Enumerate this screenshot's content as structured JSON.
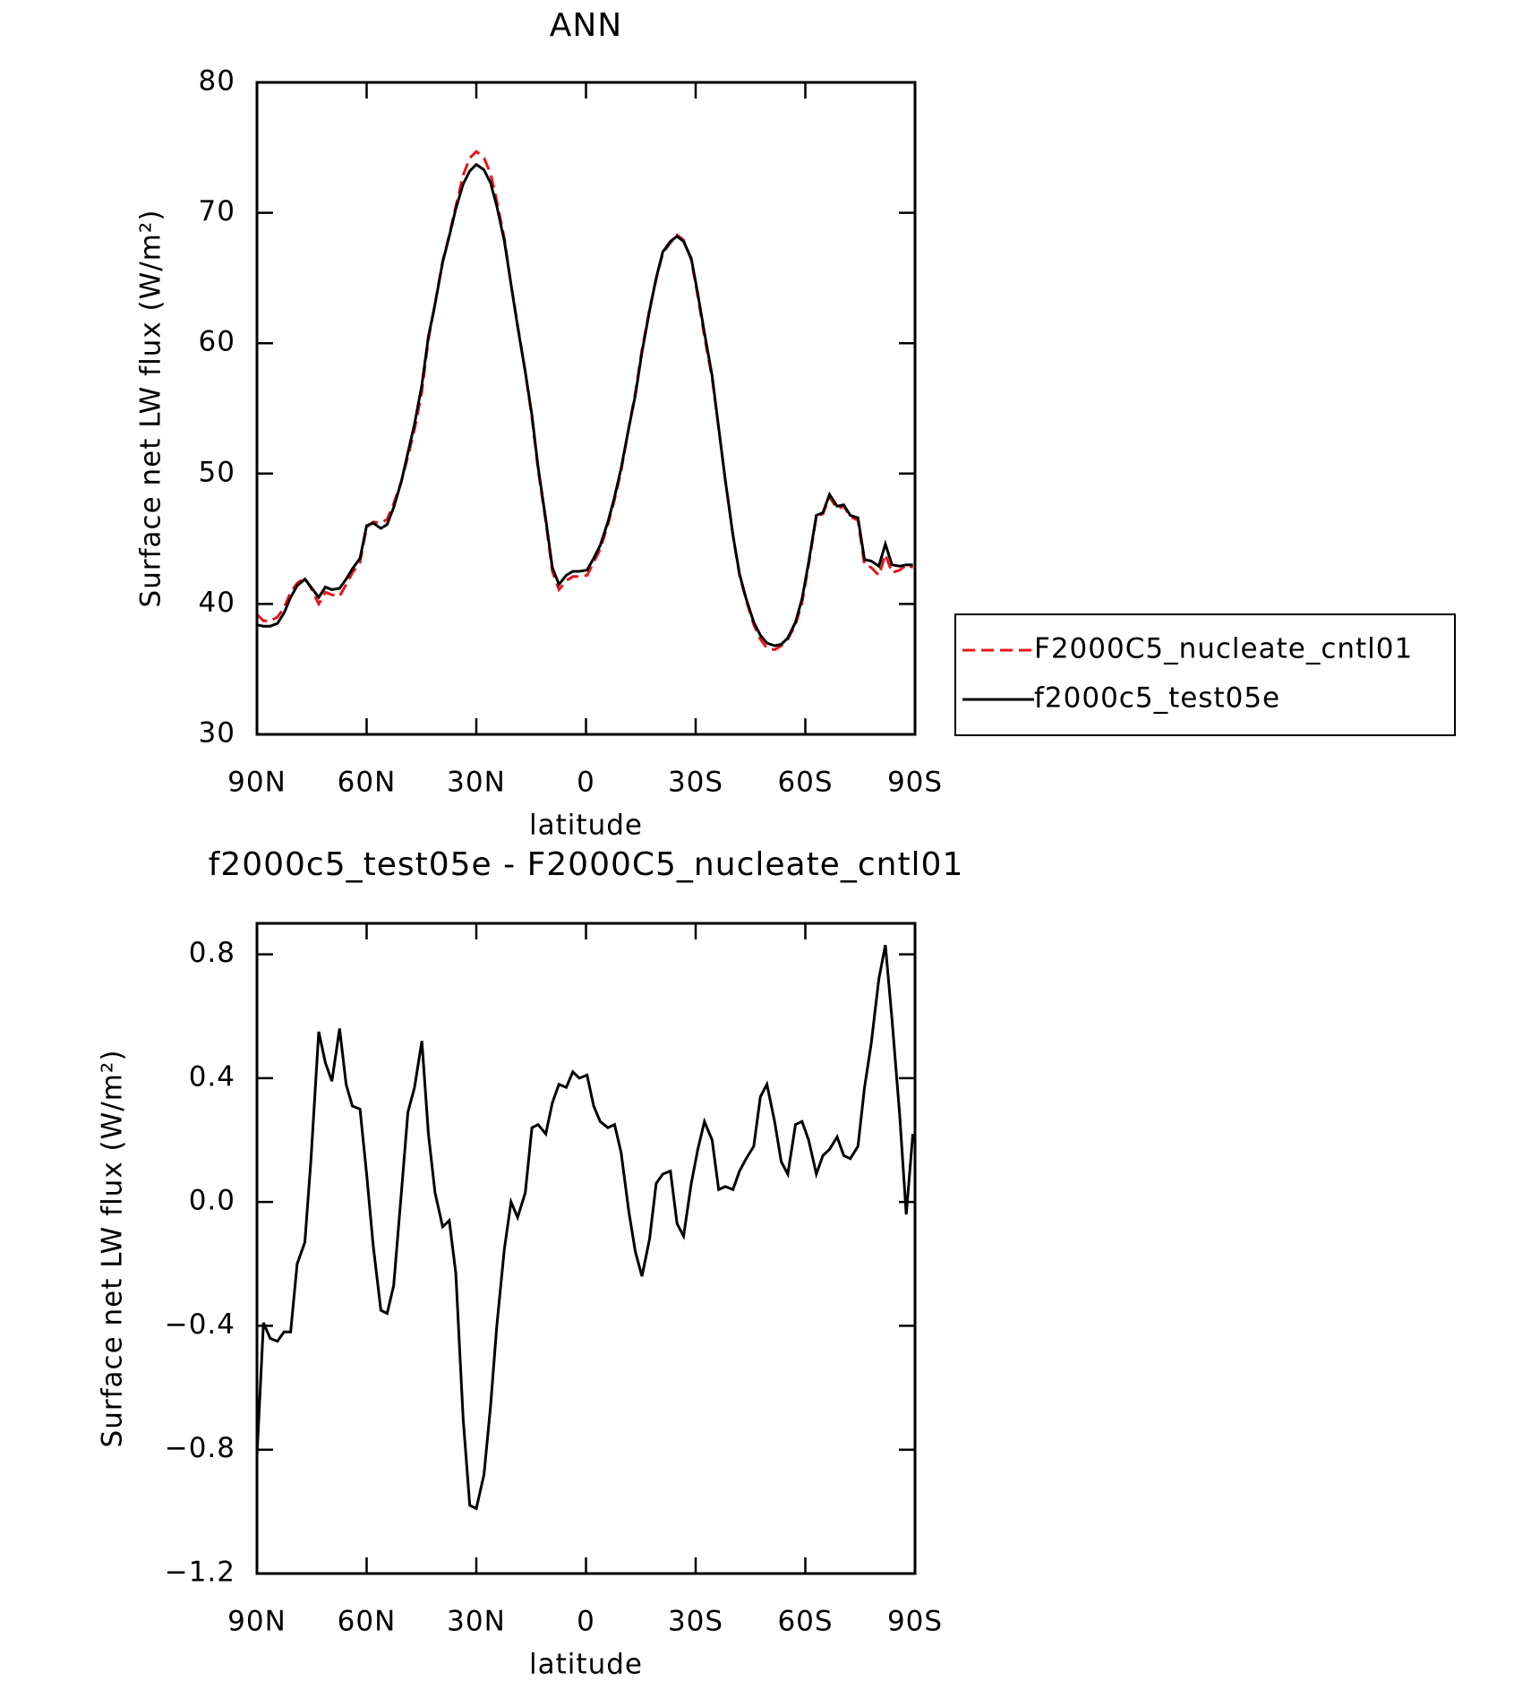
{
  "chart_data": [
    {
      "type": "line",
      "title": "ANN",
      "xlabel": "latitude",
      "ylabel": "Surface net LW flux (W/m²)",
      "x": [
        90,
        88.2,
        86.4,
        84.4,
        82.6,
        80.8,
        79.0,
        76.9,
        75.2,
        73.1,
        71.3,
        69.5,
        67.4,
        65.6,
        63.9,
        61.8,
        60.0,
        58.2,
        56.1,
        54.4,
        52.6,
        50.5,
        48.7,
        46.9,
        44.9,
        43.1,
        41.3,
        39.2,
        37.4,
        35.6,
        33.6,
        31.8,
        30.0,
        27.9,
        26.1,
        24.4,
        22.3,
        20.5,
        18.7,
        16.6,
        14.8,
        13.1,
        11.0,
        9.2,
        7.4,
        5.4,
        3.6,
        1.8,
        -0.3,
        -2.1,
        -3.9,
        -6.0,
        -7.8,
        -9.6,
        -11.7,
        -13.5,
        -15.3,
        -17.4,
        -19.2,
        -21.0,
        -23.1,
        -24.9,
        -26.7,
        -28.8,
        -30.6,
        -32.4,
        -34.5,
        -36.3,
        -38.1,
        -40.2,
        -42.0,
        -43.8,
        -45.9,
        -47.7,
        -49.5,
        -51.6,
        -53.4,
        -55.2,
        -57.3,
        -59.1,
        -60.9,
        -63.0,
        -64.8,
        -66.6,
        -68.7,
        -70.5,
        -72.3,
        -74.4,
        -76.2,
        -78.0,
        -80.1,
        -81.9,
        -83.7,
        -85.8,
        -87.6,
        -89.4
      ],
      "series": [
        {
          "name": "F2000C5_nucleate_cntl01",
          "color": "#e8141a",
          "style": "dashed",
          "values": [
            39.2,
            38.7,
            38.7,
            39.0,
            39.7,
            40.9,
            41.6,
            42.0,
            41.2,
            40.0,
            40.9,
            40.7,
            40.6,
            41.5,
            42.4,
            43.2,
            45.9,
            46.3,
            46.2,
            46.5,
            47.7,
            49.4,
            51.3,
            53.4,
            56.3,
            60.3,
            63.0,
            66.3,
            68.3,
            70.5,
            72.9,
            74.2,
            74.7,
            74.2,
            73.0,
            70.9,
            68.0,
            64.5,
            61.4,
            57.8,
            54.3,
            50.3,
            46.3,
            42.5,
            41.1,
            41.8,
            42.1,
            42.1,
            42.2,
            43.2,
            44.2,
            46.1,
            48.0,
            50.2,
            53.5,
            56.2,
            59.5,
            62.6,
            64.9,
            66.9,
            67.7,
            68.3,
            67.9,
            66.4,
            63.6,
            60.5,
            57.3,
            53.5,
            49.5,
            45.3,
            42.2,
            40.3,
            38.4,
            37.3,
            36.6,
            36.5,
            36.8,
            37.3,
            38.4,
            40.1,
            43.0,
            46.7,
            46.9,
            48.2,
            47.3,
            47.5,
            46.7,
            46.4,
            43.0,
            42.8,
            42.2,
            43.8,
            42.4,
            42.6,
            43.0,
            42.8
          ]
        },
        {
          "name": "f2000c5_test05e",
          "color": "#000000",
          "style": "solid",
          "values": [
            38.4,
            38.3,
            38.3,
            38.5,
            39.3,
            40.5,
            41.4,
            41.9,
            41.3,
            40.5,
            41.3,
            41.1,
            41.2,
            41.9,
            42.7,
            43.5,
            46.0,
            46.2,
            45.8,
            46.1,
            47.4,
            49.4,
            51.6,
            53.8,
            56.8,
            60.5,
            63.0,
            66.2,
            68.2,
            70.3,
            72.2,
            73.2,
            73.7,
            73.3,
            72.3,
            70.5,
            67.8,
            64.5,
            61.3,
            57.8,
            54.5,
            50.5,
            46.5,
            42.8,
            41.5,
            42.2,
            42.5,
            42.5,
            42.6,
            43.5,
            44.5,
            46.3,
            48.2,
            50.4,
            53.5,
            56.0,
            59.3,
            62.5,
            65.0,
            67.0,
            67.8,
            68.2,
            67.8,
            66.5,
            63.8,
            60.8,
            57.5,
            53.5,
            49.5,
            45.3,
            42.3,
            40.4,
            38.6,
            37.6,
            37.0,
            36.8,
            36.9,
            37.4,
            38.6,
            40.4,
            43.2,
            46.8,
            47.0,
            48.4,
            47.5,
            47.6,
            46.8,
            46.6,
            43.4,
            43.3,
            42.9,
            44.6,
            43.0,
            42.9,
            43.0,
            43.0
          ]
        }
      ],
      "xlim": [
        90,
        -90
      ],
      "xticks": [
        {
          "value": 90,
          "label": "90N"
        },
        {
          "value": 60,
          "label": "60N"
        },
        {
          "value": 30,
          "label": "30N"
        },
        0,
        {
          "value": -30,
          "label": "30S"
        },
        {
          "value": -60,
          "label": "60S"
        },
        {
          "value": -90,
          "label": "90S"
        }
      ],
      "ylim": [
        30,
        80
      ],
      "yticks": [
        30,
        40,
        50,
        60,
        70,
        80
      ],
      "legend": "right"
    },
    {
      "type": "line",
      "title": "f2000c5_test05e - F2000C5_nucleate_cntl01",
      "xlabel": "latitude",
      "ylabel": "Surface net LW flux (W/m²)",
      "x": [
        90,
        88.2,
        86.4,
        84.4,
        82.6,
        80.8,
        79.0,
        76.9,
        75.2,
        73.1,
        71.3,
        69.5,
        67.4,
        65.6,
        63.9,
        61.8,
        60.0,
        58.2,
        56.1,
        54.4,
        52.6,
        50.5,
        48.7,
        46.9,
        44.9,
        43.1,
        41.3,
        39.2,
        37.4,
        35.6,
        33.6,
        31.8,
        30.0,
        27.9,
        26.1,
        24.4,
        22.3,
        20.5,
        18.7,
        16.6,
        14.8,
        13.1,
        11.0,
        9.2,
        7.4,
        5.4,
        3.6,
        1.8,
        -0.3,
        -2.1,
        -3.9,
        -6.0,
        -7.8,
        -9.6,
        -11.7,
        -13.5,
        -15.3,
        -17.4,
        -19.2,
        -21.0,
        -23.1,
        -24.9,
        -26.7,
        -28.8,
        -30.6,
        -32.4,
        -34.5,
        -36.3,
        -38.1,
        -40.2,
        -42.0,
        -43.8,
        -45.9,
        -47.7,
        -49.5,
        -51.6,
        -53.4,
        -55.2,
        -57.3,
        -59.1,
        -60.9,
        -63.0,
        -64.8,
        -66.6,
        -68.7,
        -70.5,
        -72.3,
        -74.4,
        -76.2,
        -78.0,
        -80.1,
        -81.9,
        -83.7,
        -85.8,
        -87.6,
        -89.4
      ],
      "values": [
        -0.82,
        -0.39,
        -0.44,
        -0.45,
        -0.42,
        -0.42,
        -0.2,
        -0.13,
        0.14,
        0.55,
        0.45,
        0.39,
        0.56,
        0.38,
        0.31,
        0.3,
        0.09,
        -0.14,
        -0.35,
        -0.36,
        -0.27,
        0.03,
        0.29,
        0.37,
        0.52,
        0.22,
        0.03,
        -0.08,
        -0.06,
        -0.23,
        -0.7,
        -0.98,
        -0.99,
        -0.88,
        -0.66,
        -0.4,
        -0.15,
        0.0,
        -0.05,
        0.03,
        0.24,
        0.25,
        0.22,
        0.32,
        0.38,
        0.37,
        0.42,
        0.4,
        0.41,
        0.31,
        0.26,
        0.24,
        0.25,
        0.16,
        -0.03,
        -0.16,
        -0.24,
        -0.12,
        0.06,
        0.09,
        0.1,
        -0.07,
        -0.11,
        0.06,
        0.17,
        0.26,
        0.2,
        0.04,
        0.05,
        0.04,
        0.1,
        0.14,
        0.18,
        0.34,
        0.38,
        0.26,
        0.13,
        0.09,
        0.25,
        0.26,
        0.2,
        0.09,
        0.15,
        0.17,
        0.21,
        0.15,
        0.14,
        0.18,
        0.37,
        0.51,
        0.72,
        0.83,
        0.59,
        0.28,
        -0.04,
        0.22
      ],
      "color": "#000000",
      "xlim": [
        90,
        -90
      ],
      "xticks": [
        {
          "value": 90,
          "label": "90N"
        },
        {
          "value": 60,
          "label": "60N"
        },
        {
          "value": 30,
          "label": "30N"
        },
        0,
        {
          "value": -30,
          "label": "30S"
        },
        {
          "value": -60,
          "label": "60S"
        },
        {
          "value": -90,
          "label": "90S"
        }
      ],
      "ylim": [
        -1.2,
        0.9
      ],
      "yticks": [
        {
          "value": -1.2,
          "label": "−1.2"
        },
        {
          "value": -0.8,
          "label": "−0.8"
        },
        {
          "value": -0.4,
          "label": "−0.4"
        },
        {
          "value": 0.0,
          "label": "0.0"
        },
        {
          "value": 0.4,
          "label": "0.4"
        },
        {
          "value": 0.8,
          "label": "0.8"
        }
      ]
    }
  ]
}
